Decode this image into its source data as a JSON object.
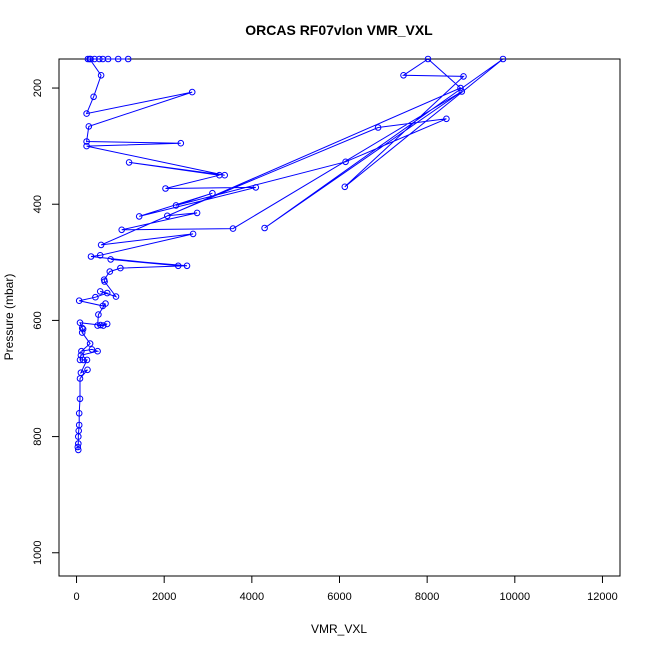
{
  "chart_data": {
    "type": "line",
    "title": "ORCAS RF07vlon VMR_VXL",
    "xlabel": "VMR_VXL",
    "ylabel": "Pressure (mbar)",
    "xlim": [
      -400,
      12400
    ],
    "ylim": [
      1040,
      150
    ],
    "y_reversed": true,
    "x_ticks": [
      0,
      2000,
      4000,
      6000,
      8000,
      10000,
      12000
    ],
    "y_ticks": [
      200,
      400,
      600,
      800,
      1000
    ],
    "grid": false,
    "legend": "none",
    "series": [
      {
        "color": "#0000ff",
        "points": [
          [
            1180,
            150
          ],
          [
            950,
            150
          ],
          [
            720,
            150
          ],
          [
            600,
            150
          ],
          [
            520,
            150
          ],
          [
            410,
            150
          ],
          [
            320,
            150
          ],
          [
            260,
            150
          ],
          [
            300,
            150
          ],
          [
            560,
            178
          ],
          [
            390,
            215
          ],
          [
            230,
            244
          ],
          [
            2640,
            207
          ],
          [
            280,
            266
          ],
          [
            230,
            292
          ],
          [
            2380,
            295
          ],
          [
            230,
            300
          ],
          [
            3380,
            350
          ],
          [
            1200,
            328
          ],
          [
            3260,
            350
          ],
          [
            2030,
            373
          ],
          [
            4090,
            371
          ],
          [
            1430,
            421
          ],
          [
            3100,
            381
          ],
          [
            2270,
            402
          ],
          [
            6140,
            327
          ],
          [
            8440,
            253
          ],
          [
            6880,
            268
          ],
          [
            2070,
            420
          ],
          [
            2750,
            415
          ],
          [
            1030,
            444
          ],
          [
            3570,
            442
          ],
          [
            8790,
            206
          ],
          [
            4290,
            441
          ],
          [
            9730,
            150
          ],
          [
            6120,
            370
          ],
          [
            8830,
            180
          ],
          [
            7460,
            178
          ],
          [
            8020,
            150
          ],
          [
            8760,
            200
          ],
          [
            560,
            470
          ],
          [
            2660,
            451
          ],
          [
            540,
            488
          ],
          [
            330,
            490
          ],
          [
            2320,
            506
          ],
          [
            780,
            495
          ],
          [
            2520,
            506
          ],
          [
            1000,
            510
          ],
          [
            760,
            516
          ],
          [
            630,
            530
          ],
          [
            640,
            533
          ],
          [
            900,
            559
          ],
          [
            540,
            550
          ],
          [
            700,
            553
          ],
          [
            430,
            560
          ],
          [
            60,
            566
          ],
          [
            600,
            575
          ],
          [
            660,
            571
          ],
          [
            500,
            590
          ],
          [
            480,
            609
          ],
          [
            610,
            609
          ],
          [
            700,
            606
          ],
          [
            550,
            608
          ],
          [
            80,
            604
          ],
          [
            130,
            613
          ],
          [
            150,
            615
          ],
          [
            130,
            621
          ],
          [
            310,
            640
          ],
          [
            110,
            653
          ],
          [
            350,
            650
          ],
          [
            480,
            653
          ],
          [
            100,
            660
          ],
          [
            80,
            668
          ],
          [
            150,
            668
          ],
          [
            240,
            668
          ],
          [
            100,
            690
          ],
          [
            250,
            685
          ],
          [
            80,
            700
          ],
          [
            80,
            735
          ],
          [
            60,
            760
          ],
          [
            60,
            780
          ],
          [
            50,
            790
          ],
          [
            40,
            800
          ],
          [
            40,
            812
          ],
          [
            30,
            818
          ],
          [
            40,
            823
          ]
        ]
      }
    ]
  }
}
